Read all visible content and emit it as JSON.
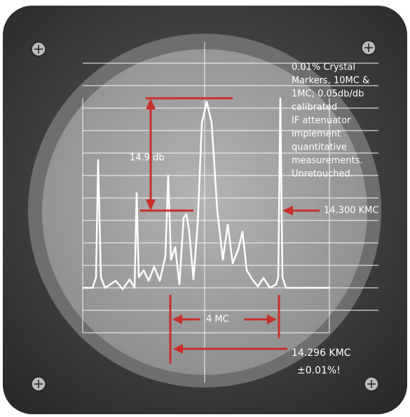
{
  "callout": {
    "lines": [
      "0.01% Crystal",
      "Markers, 10MC &",
      "1MC; 0.05db/db",
      "calibrated",
      "IF attenuator",
      "implement",
      "quantitative",
      "measurements.",
      "Unretouched."
    ]
  },
  "labels": {
    "attenuation": "14.9 db",
    "marker_upper": "14.300 KMC",
    "span": "4 MC",
    "marker_lower": "14.296 KMC",
    "accuracy": "±0.01%!"
  }
}
